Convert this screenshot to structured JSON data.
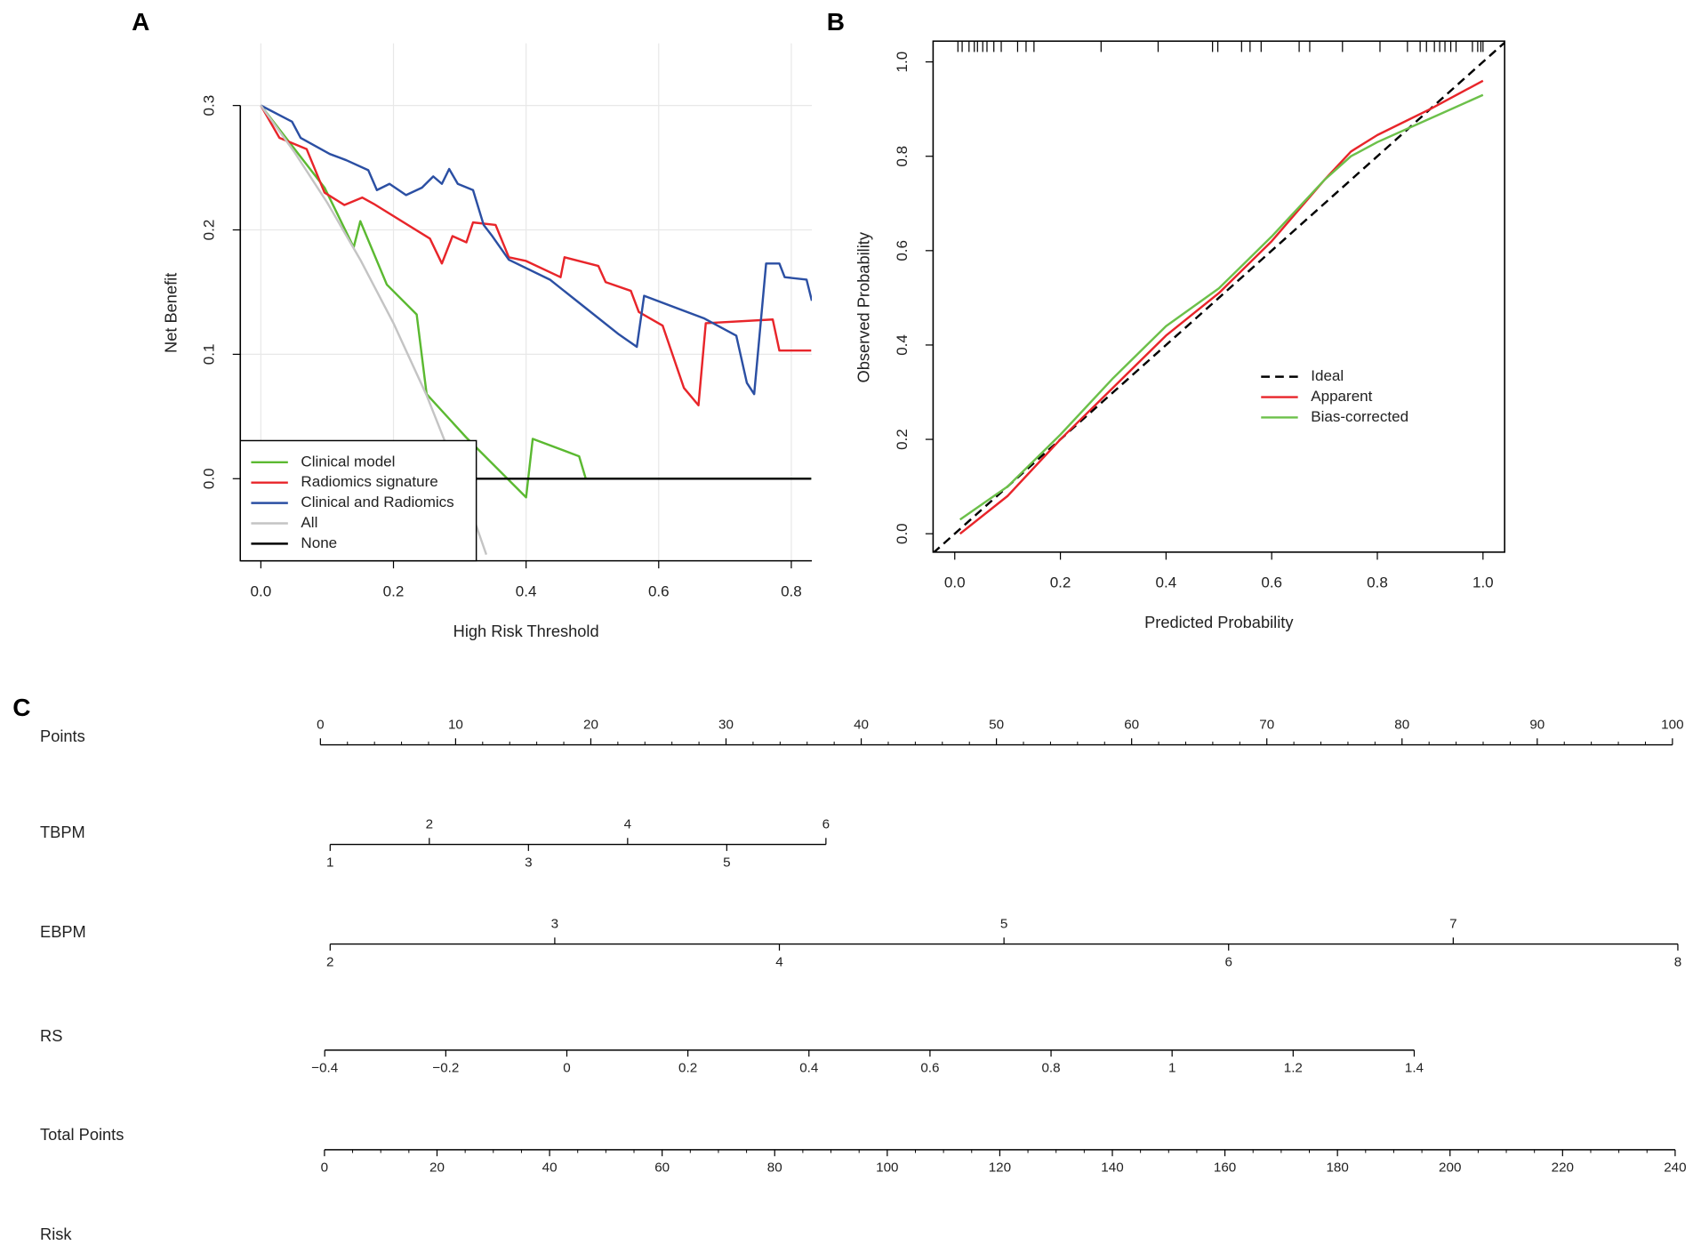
{
  "chart_data": [
    {
      "type": "line",
      "label": "A",
      "xlabel": "High Risk Threshold",
      "ylabel": "Net Benefit",
      "xlim": [
        -0.031,
        0.831
      ],
      "ylim": [
        -0.066,
        0.35
      ],
      "xticks": [
        {
          "value": 0,
          "label": "0.0"
        },
        {
          "value": 0.2,
          "label": "0.2"
        },
        {
          "value": 0.4,
          "label": "0.4"
        },
        {
          "value": 0.6,
          "label": "0.6"
        },
        {
          "value": 0.8,
          "label": "0.8"
        }
      ],
      "yticks": [
        {
          "value": 0,
          "label": "0.0"
        },
        {
          "value": 0.1,
          "label": "0.1"
        },
        {
          "value": 0.2,
          "label": "0.2"
        },
        {
          "value": 0.3,
          "label": "0.3"
        }
      ],
      "grid": true,
      "frame": "l",
      "legend": "bottom-left",
      "series": [
        {
          "name": "Clinical model",
          "color": "#5bb931",
          "x": [
            0,
            0.096,
            0.14,
            0.15,
            0.19,
            0.235,
            0.25,
            0.31,
            0.4,
            0.41,
            0.48,
            0.49,
            0.83
          ],
          "values": [
            0.3,
            0.234,
            0.186,
            0.207,
            0.156,
            0.132,
            0.068,
            0.033,
            -0.015,
            0.032,
            0.018,
            0,
            0
          ]
        },
        {
          "name": "Radiomics signature",
          "color": "#e8252a",
          "x": [
            0,
            0.028,
            0.069,
            0.096,
            0.126,
            0.153,
            0.17,
            0.255,
            0.273,
            0.289,
            0.31,
            0.32,
            0.354,
            0.374,
            0.4,
            0.452,
            0.458,
            0.509,
            0.52,
            0.558,
            0.57,
            0.606,
            0.638,
            0.66,
            0.671,
            0.772,
            0.782,
            0.83
          ],
          "values": [
            0.3,
            0.274,
            0.265,
            0.23,
            0.22,
            0.226,
            0.221,
            0.193,
            0.173,
            0.195,
            0.19,
            0.206,
            0.204,
            0.178,
            0.175,
            0.162,
            0.178,
            0.171,
            0.158,
            0.151,
            0.134,
            0.123,
            0.073,
            0.059,
            0.125,
            0.128,
            0.103,
            0.103
          ]
        },
        {
          "name": "Clinical and Radiomics",
          "color": "#2b4fa3",
          "x": [
            0,
            0.047,
            0.06,
            0.104,
            0.129,
            0.162,
            0.175,
            0.194,
            0.219,
            0.243,
            0.26,
            0.273,
            0.284,
            0.297,
            0.32,
            0.336,
            0.349,
            0.374,
            0.436,
            0.488,
            0.54,
            0.567,
            0.578,
            0.668,
            0.717,
            0.733,
            0.744,
            0.762,
            0.782,
            0.79,
            0.823,
            0.831
          ],
          "values": [
            0.3,
            0.287,
            0.274,
            0.261,
            0.256,
            0.248,
            0.232,
            0.237,
            0.228,
            0.234,
            0.243,
            0.237,
            0.249,
            0.237,
            0.232,
            0.204,
            0.195,
            0.176,
            0.16,
            0.138,
            0.116,
            0.106,
            0.147,
            0.129,
            0.115,
            0.077,
            0.068,
            0.173,
            0.173,
            0.162,
            0.16,
            0.143
          ]
        },
        {
          "name": "All",
          "color": "#c4c4c4",
          "x": [
            0,
            0.05,
            0.1,
            0.15,
            0.2,
            0.25,
            0.3,
            0.34
          ],
          "values": [
            0.3,
            0.263,
            0.222,
            0.176,
            0.125,
            0.067,
            0,
            -0.061
          ]
        },
        {
          "name": "None",
          "color": "#000000",
          "x": [
            0,
            0.83
          ],
          "values": [
            0,
            0
          ]
        }
      ]
    },
    {
      "type": "line",
      "label": "B",
      "xlabel": "Predicted Probability",
      "ylabel": "Observed Probability",
      "xlim": [
        -0.041,
        1.041
      ],
      "ylim": [
        -0.039,
        1.044
      ],
      "xticks": [
        {
          "value": 0,
          "label": "0.0"
        },
        {
          "value": 0.2,
          "label": "0.2"
        },
        {
          "value": 0.4,
          "label": "0.4"
        },
        {
          "value": 0.6,
          "label": "0.6"
        },
        {
          "value": 0.8,
          "label": "0.8"
        },
        {
          "value": 1,
          "label": "1.0"
        }
      ],
      "yticks": [
        {
          "value": 0,
          "label": "0.0"
        },
        {
          "value": 0.2,
          "label": "0.2"
        },
        {
          "value": 0.4,
          "label": "0.4"
        },
        {
          "value": 0.6,
          "label": "0.6"
        },
        {
          "value": 0.8,
          "label": "0.8"
        },
        {
          "value": 1,
          "label": "1.0"
        }
      ],
      "grid": false,
      "frame": "box",
      "legend": "right",
      "rug": [
        0.006,
        0.014,
        0.027,
        0.037,
        0.043,
        0.053,
        0.061,
        0.074,
        0.088,
        0.119,
        0.135,
        0.15,
        0.277,
        0.385,
        0.488,
        0.498,
        0.543,
        0.559,
        0.58,
        0.652,
        0.672,
        0.734,
        0.805,
        0.857,
        0.881,
        0.893,
        0.908,
        0.918,
        0.928,
        0.939,
        0.949,
        0.98,
        0.99,
        0.996,
        1.0
      ],
      "series": [
        {
          "name": "Ideal",
          "color": "#000000",
          "dashed": true,
          "x": [
            -0.041,
            1.041
          ],
          "values": [
            -0.041,
            1.041
          ]
        },
        {
          "name": "Apparent",
          "color": "#e8252a",
          "x": [
            0.01,
            0.1,
            0.2,
            0.3,
            0.4,
            0.5,
            0.6,
            0.7,
            0.75,
            0.8,
            0.9,
            1.0
          ],
          "values": [
            0.0,
            0.08,
            0.2,
            0.31,
            0.42,
            0.51,
            0.62,
            0.75,
            0.81,
            0.845,
            0.9,
            0.96
          ]
        },
        {
          "name": "Bias-corrected",
          "color": "#6cc04a",
          "x": [
            0.01,
            0.1,
            0.2,
            0.3,
            0.4,
            0.5,
            0.6,
            0.7,
            0.75,
            0.8,
            0.9,
            1.0
          ],
          "values": [
            0.03,
            0.1,
            0.21,
            0.33,
            0.44,
            0.52,
            0.63,
            0.75,
            0.8,
            0.83,
            0.88,
            0.93
          ]
        }
      ]
    }
  ],
  "nomogram": {
    "label": "C",
    "rows": [
      {
        "name": "Points",
        "lim": [
          0,
          100
        ],
        "points": [
          0,
          100
        ],
        "labels": "above",
        "minor": 4,
        "ticks": [
          0,
          10,
          20,
          30,
          40,
          50,
          60,
          70,
          80,
          90,
          100
        ]
      },
      {
        "name": "TBPM",
        "lim": [
          1,
          6
        ],
        "points": [
          0.72,
          37.39
        ],
        "labels": "alternate",
        "minor": 0,
        "ticks": [
          1,
          2,
          3,
          4,
          5,
          6
        ]
      },
      {
        "name": "EBPM",
        "lim": [
          2,
          8
        ],
        "points": [
          0.72,
          100.4
        ],
        "labels": "alternate",
        "minor": 0,
        "ticks": [
          2,
          3,
          4,
          5,
          6,
          7,
          8
        ]
      },
      {
        "name": "RS",
        "lim": [
          -0.4,
          1.4
        ],
        "points": [
          0.32,
          80.9
        ],
        "labels": "below",
        "minor": 0,
        "ticks": [
          {
            "value": -0.4,
            "label": "−0.4"
          },
          {
            "value": -0.2,
            "label": "−0.2"
          },
          0,
          0.2,
          0.4,
          0.6,
          0.8,
          1,
          1.2,
          1.4
        ]
      },
      {
        "name": "Total Points",
        "lim": [
          0,
          240
        ],
        "points": [
          0.3,
          100.2
        ],
        "labels": "below",
        "minor": 3,
        "ticks": [
          0,
          20,
          40,
          60,
          80,
          100,
          120,
          140,
          160,
          180,
          200,
          220,
          240
        ]
      },
      {
        "name": "Risk"
      }
    ]
  }
}
